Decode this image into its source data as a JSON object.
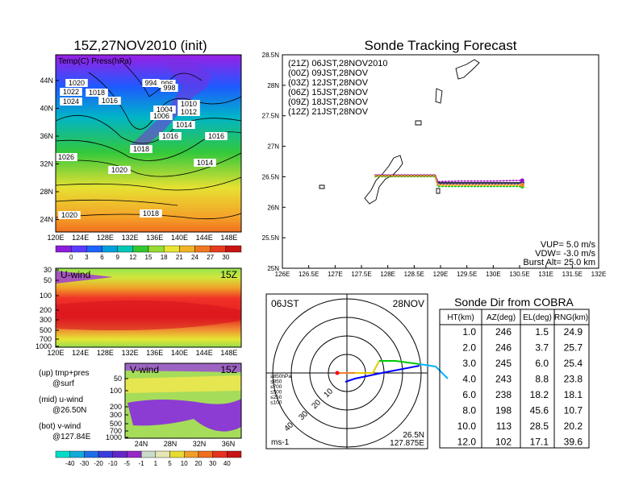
{
  "chart_data": [
    {
      "type": "heatmap",
      "panel": "surface",
      "title": "15Z,27NOV2010 (init)",
      "overlay_label": "Temp(C) Press(hPa)",
      "x_ticks": [
        "120E",
        "124E",
        "128E",
        "132E",
        "136E",
        "140E",
        "144E",
        "148E"
      ],
      "y_ticks": [
        "44N",
        "40N",
        "36N",
        "32N",
        "28N",
        "24N"
      ],
      "isobar_labels": [
        "1020",
        "1022",
        "1024",
        "1018",
        "1016",
        "994",
        "996",
        "998",
        "1004",
        "1006",
        "1010",
        "1012",
        "1014",
        "1016",
        "1018",
        "1020",
        "1014",
        "1018",
        "1026",
        "1020",
        "1016"
      ],
      "colorbar_ticks": [
        "0",
        "3",
        "6",
        "9",
        "12",
        "15",
        "18",
        "21",
        "24",
        "27",
        "30"
      ]
    },
    {
      "type": "heatmap",
      "panel": "u-wind",
      "title": "U-wind",
      "time_label": "15Z",
      "x_ticks": [
        "120E",
        "124E",
        "128E",
        "132E",
        "136E",
        "140E",
        "144E",
        "148E"
      ],
      "y_ticks": [
        "30",
        "50",
        "100",
        "200",
        "300",
        "500",
        "700",
        "1000"
      ]
    },
    {
      "type": "heatmap",
      "panel": "v-wind",
      "title": "V-wind",
      "time_label": "15Z",
      "x_ticks": [
        "24N",
        "28N",
        "32N",
        "36N"
      ],
      "y_ticks": [
        "50",
        "100",
        "200",
        "300",
        "500",
        "700",
        "1000"
      ],
      "colorbar_ticks": [
        "-40",
        "-30",
        "-20",
        "-10",
        "-5",
        "-1",
        "1",
        "5",
        "10",
        "20",
        "30",
        "40"
      ]
    },
    {
      "type": "line",
      "panel": "track",
      "title": "Sonde Tracking Forecast",
      "xlim": [
        126,
        132
      ],
      "ylim": [
        25,
        28.5
      ],
      "x_ticks": [
        "126E",
        "126.5E",
        "127E",
        "127.5E",
        "128E",
        "128.5E",
        "129E",
        "129.5E",
        "130E",
        "130.5E",
        "131E",
        "131.5E",
        "132E"
      ],
      "y_ticks": [
        "28.5N",
        "28N",
        "27.5N",
        "27N",
        "26.5N",
        "26N",
        "25.5N",
        "25N"
      ],
      "series": [
        {
          "name": "(21Z) 06JST,28NOV2010",
          "color": "#000000",
          "x": [
            127.75,
            128.9,
            128.95,
            129.4,
            130.0,
            130.55
          ],
          "y": [
            26.52,
            26.52,
            26.4,
            26.4,
            26.4,
            26.4
          ]
        },
        {
          "name": "(00Z) 09JST,28NOV",
          "color": "#a000c8",
          "x": [
            127.75,
            128.9,
            128.95,
            129.4,
            130.0,
            130.55
          ],
          "y": [
            26.53,
            26.53,
            26.42,
            26.43,
            26.43,
            26.44
          ]
        },
        {
          "name": "(03Z) 12JST,28NOV",
          "color": "#1e3cff",
          "x": [
            127.75,
            128.9,
            128.95,
            129.4,
            130.0,
            130.55
          ],
          "y": [
            26.52,
            26.52,
            26.38,
            26.38,
            26.38,
            26.38
          ]
        },
        {
          "name": "(06Z) 15JST,28NOV",
          "color": "#00c800",
          "x": [
            127.75,
            128.9,
            128.95,
            129.4,
            130.0,
            130.55
          ],
          "y": [
            26.5,
            26.5,
            26.34,
            26.34,
            26.34,
            26.34
          ]
        },
        {
          "name": "(09Z) 18JST,28NOV",
          "color": "#e6b400",
          "x": [
            127.75,
            128.9,
            128.95,
            129.4,
            130.0,
            130.55
          ],
          "y": [
            26.52,
            26.52,
            26.36,
            26.36,
            26.36,
            26.36
          ]
        },
        {
          "name": "(12Z) 21JST,28NOV",
          "color": "#f08228",
          "x": [
            127.75,
            128.9,
            128.95,
            129.4,
            130.0,
            130.55
          ],
          "y": [
            26.51,
            26.51,
            26.37,
            26.37,
            26.37,
            26.37
          ]
        }
      ],
      "annotations": {
        "vup": "VUP= 5.0 m/s",
        "vdw": "VDW= -3.0 m/s",
        "burst": "Burst Alt= 25.0 km"
      }
    },
    {
      "type": "scatter",
      "panel": "polar",
      "time_left": "06JST",
      "time_right": "28NOV",
      "ring_labels": [
        "10",
        "20",
        "30",
        "40"
      ],
      "level_legend": [
        {
          "label": "≥850hPa",
          "color": "#ff0000"
        },
        {
          "label": "≤850",
          "color": "#ff8c00"
        },
        {
          "label": "≤700",
          "color": "#e6c800"
        },
        {
          "label": "≤500",
          "color": "#00c800"
        },
        {
          "label": "≤250",
          "color": "#00b4ff"
        },
        {
          "label": "≤100",
          "color": "#0000ff"
        }
      ],
      "units": "ms-1",
      "location_lat": "26.5N",
      "location_lon": "127.875E"
    },
    {
      "type": "table",
      "panel": "sonde_dir",
      "title": "Sonde Dir from COBRA",
      "columns": [
        "HT(km)",
        "AZ(deg)",
        "EL(deg)",
        "RNG(km)"
      ],
      "rows": [
        [
          "1.0",
          "246",
          "1.5",
          "24.9"
        ],
        [
          "2.0",
          "246",
          "3.7",
          "25.7"
        ],
        [
          "3.0",
          "245",
          "6.0",
          "25.4"
        ],
        [
          "4.0",
          "243",
          "8.8",
          "23.8"
        ],
        [
          "6.0",
          "238",
          "18.2",
          "18.1"
        ],
        [
          "8.0",
          "198",
          "45.6",
          "10.7"
        ],
        [
          "10.0",
          "113",
          "28.5",
          "20.2"
        ],
        [
          "12.0",
          "102",
          "17.1",
          "39.6"
        ]
      ]
    }
  ],
  "panel_notes": {
    "up": "(up) tmp+pres",
    "up2": "@surf",
    "mid": "(mid) u-wind",
    "mid2": "@26.50N",
    "bot": "(bot) v-wind",
    "bot2": "@127.84E"
  }
}
